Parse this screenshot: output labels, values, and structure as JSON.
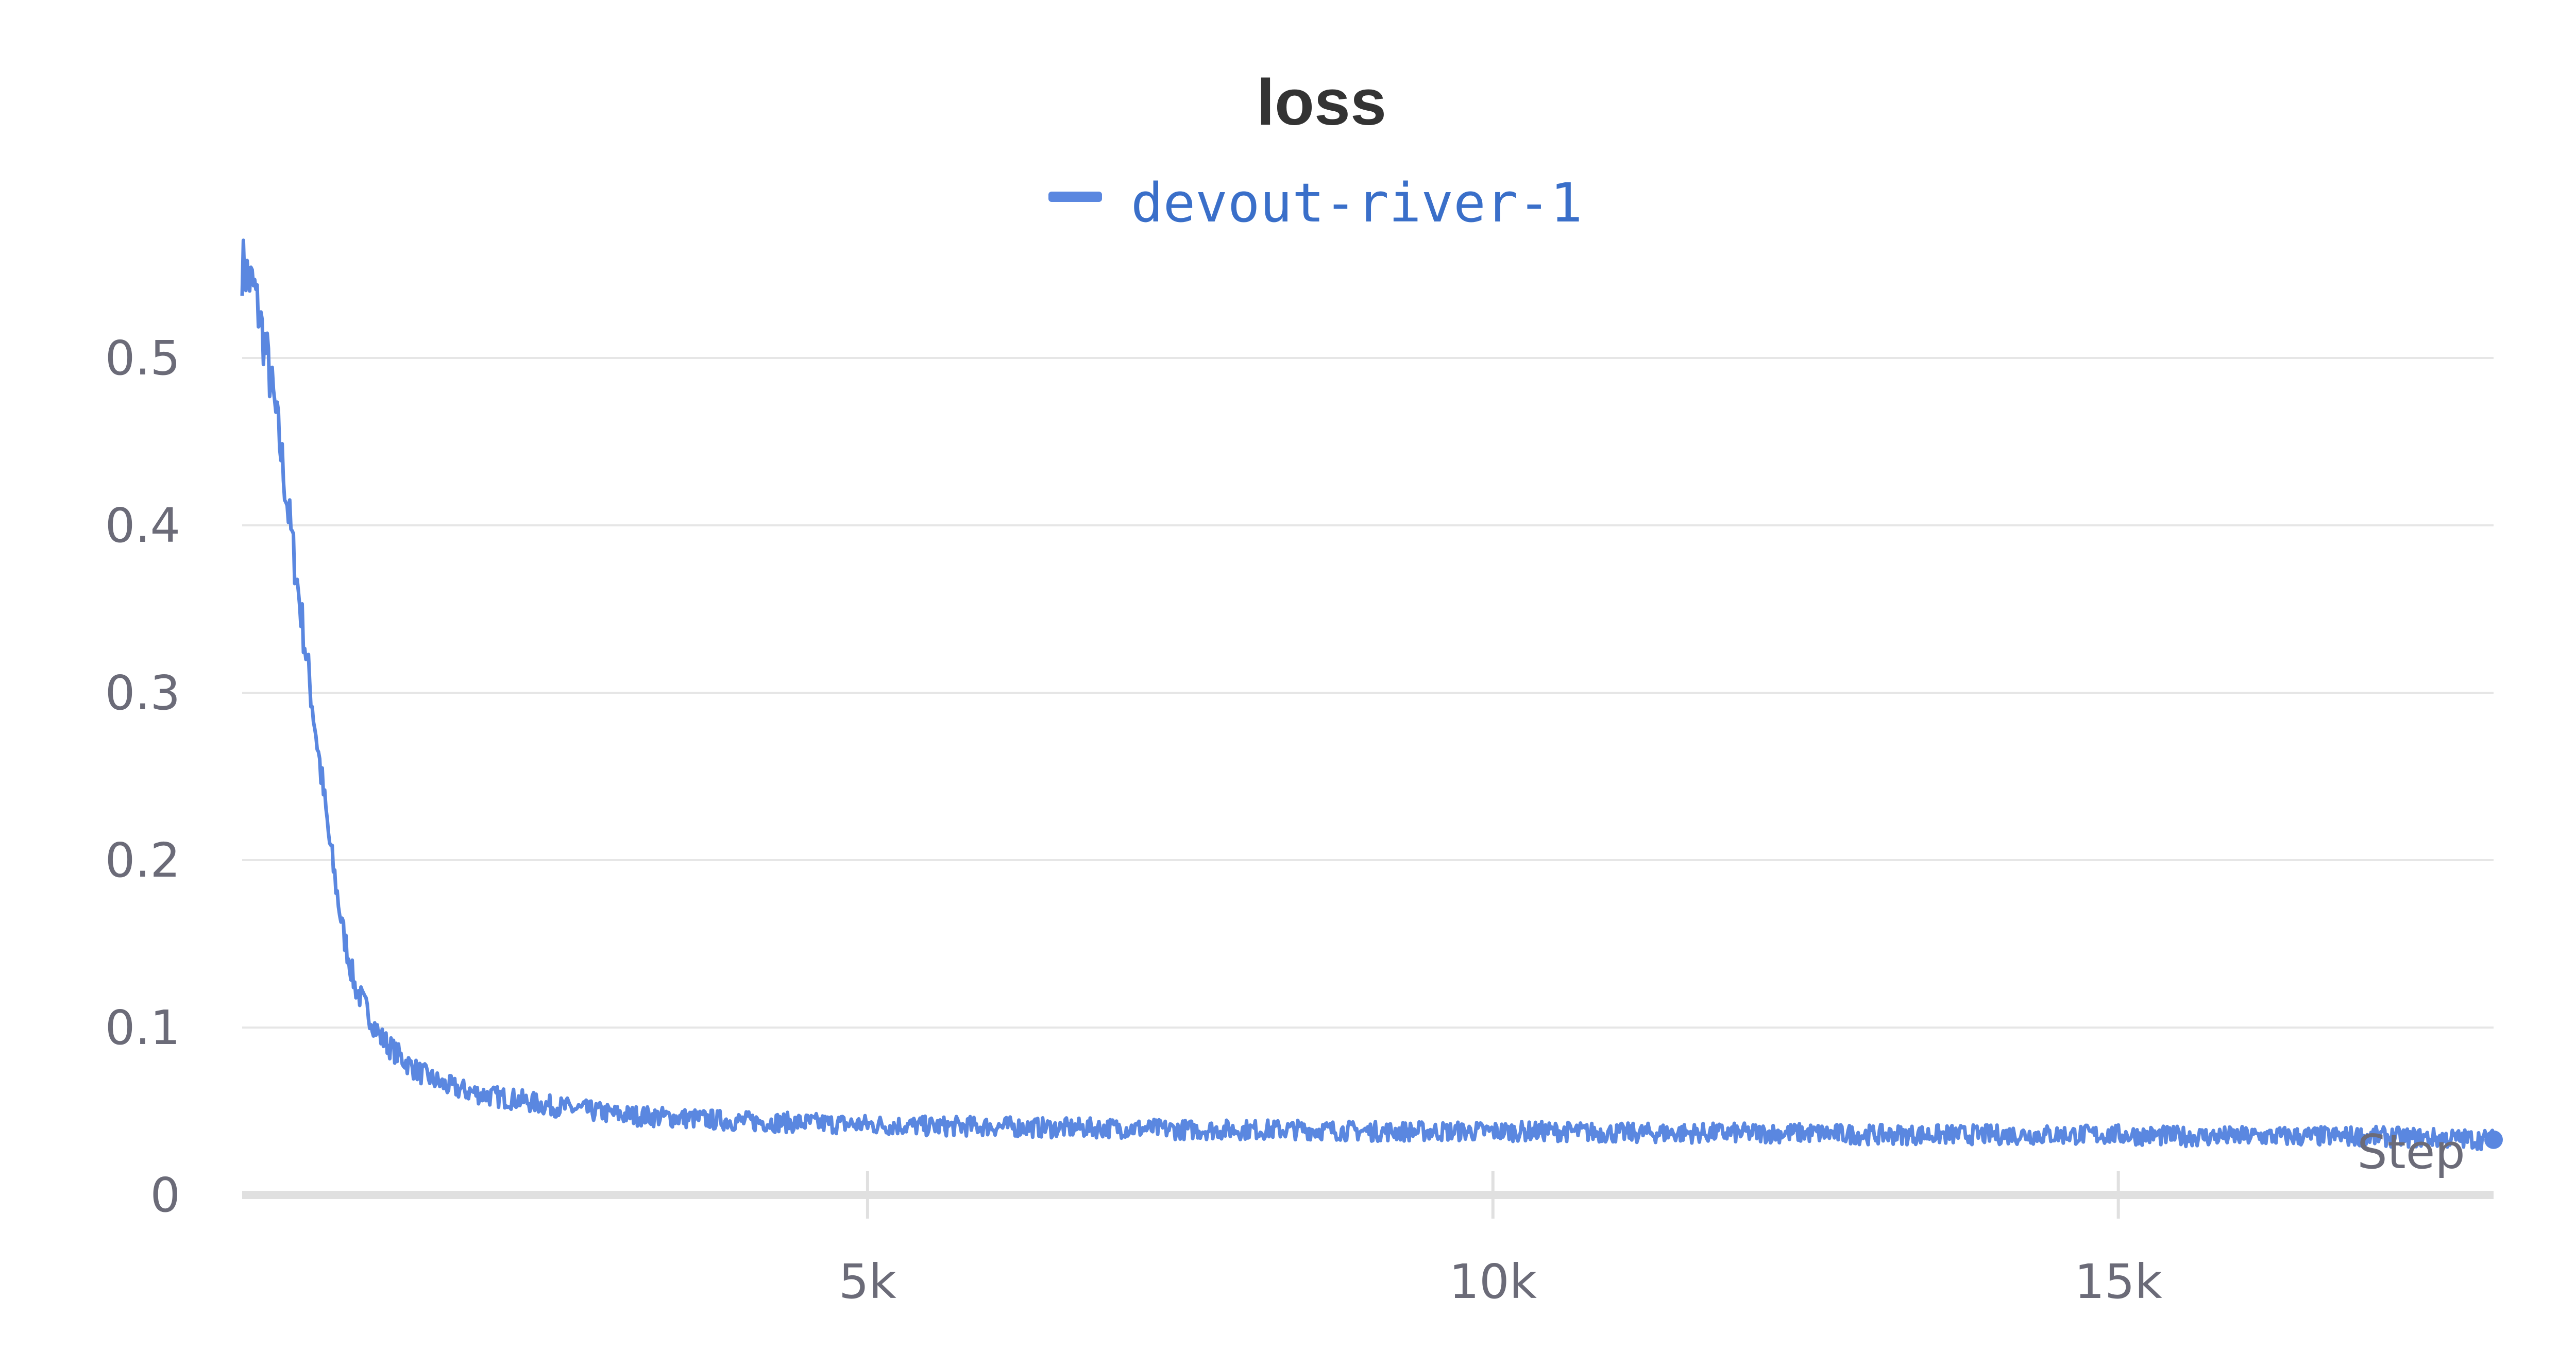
{
  "chart_data": {
    "type": "line",
    "title": "loss",
    "xlabel": "Step",
    "ylabel": "",
    "xlim": [
      0,
      18000
    ],
    "ylim": [
      0,
      0.56
    ],
    "x_ticks": [
      5000,
      10000,
      15000
    ],
    "x_tick_labels": [
      "5k",
      "10k",
      "15k"
    ],
    "y_ticks": [
      0,
      0.1,
      0.2,
      0.3,
      0.4,
      0.5
    ],
    "y_tick_labels": [
      "0",
      "0.1",
      "0.2",
      "0.3",
      "0.4",
      "0.5"
    ],
    "grid": true,
    "legend": "top-center",
    "series": [
      {
        "name": "devout-river-1",
        "color": "#5a87e0",
        "x": [
          0,
          100,
          200,
          300,
          400,
          500,
          600,
          700,
          800,
          900,
          1000,
          1100,
          1200,
          1300,
          1400,
          1500,
          1600,
          1800,
          2000,
          2200,
          2400,
          2600,
          2800,
          3000,
          3500,
          4000,
          4500,
          5000,
          5500,
          6000,
          6500,
          7000,
          7500,
          8000,
          8500,
          9000,
          9500,
          10000,
          10500,
          11000,
          11500,
          12000,
          12500,
          13000,
          13500,
          14000,
          14500,
          15000,
          15500,
          16000,
          16500,
          17000,
          17500,
          18000
        ],
        "y": [
          0.556,
          0.54,
          0.5,
          0.45,
          0.39,
          0.33,
          0.27,
          0.21,
          0.16,
          0.125,
          0.11,
          0.095,
          0.087,
          0.08,
          0.074,
          0.07,
          0.066,
          0.062,
          0.059,
          0.057,
          0.054,
          0.052,
          0.05,
          0.048,
          0.046,
          0.044,
          0.043,
          0.042,
          0.041,
          0.041,
          0.04,
          0.04,
          0.039,
          0.039,
          0.039,
          0.038,
          0.038,
          0.038,
          0.038,
          0.037,
          0.037,
          0.037,
          0.037,
          0.036,
          0.036,
          0.036,
          0.036,
          0.036,
          0.035,
          0.035,
          0.035,
          0.035,
          0.034,
          0.033
        ]
      }
    ]
  }
}
